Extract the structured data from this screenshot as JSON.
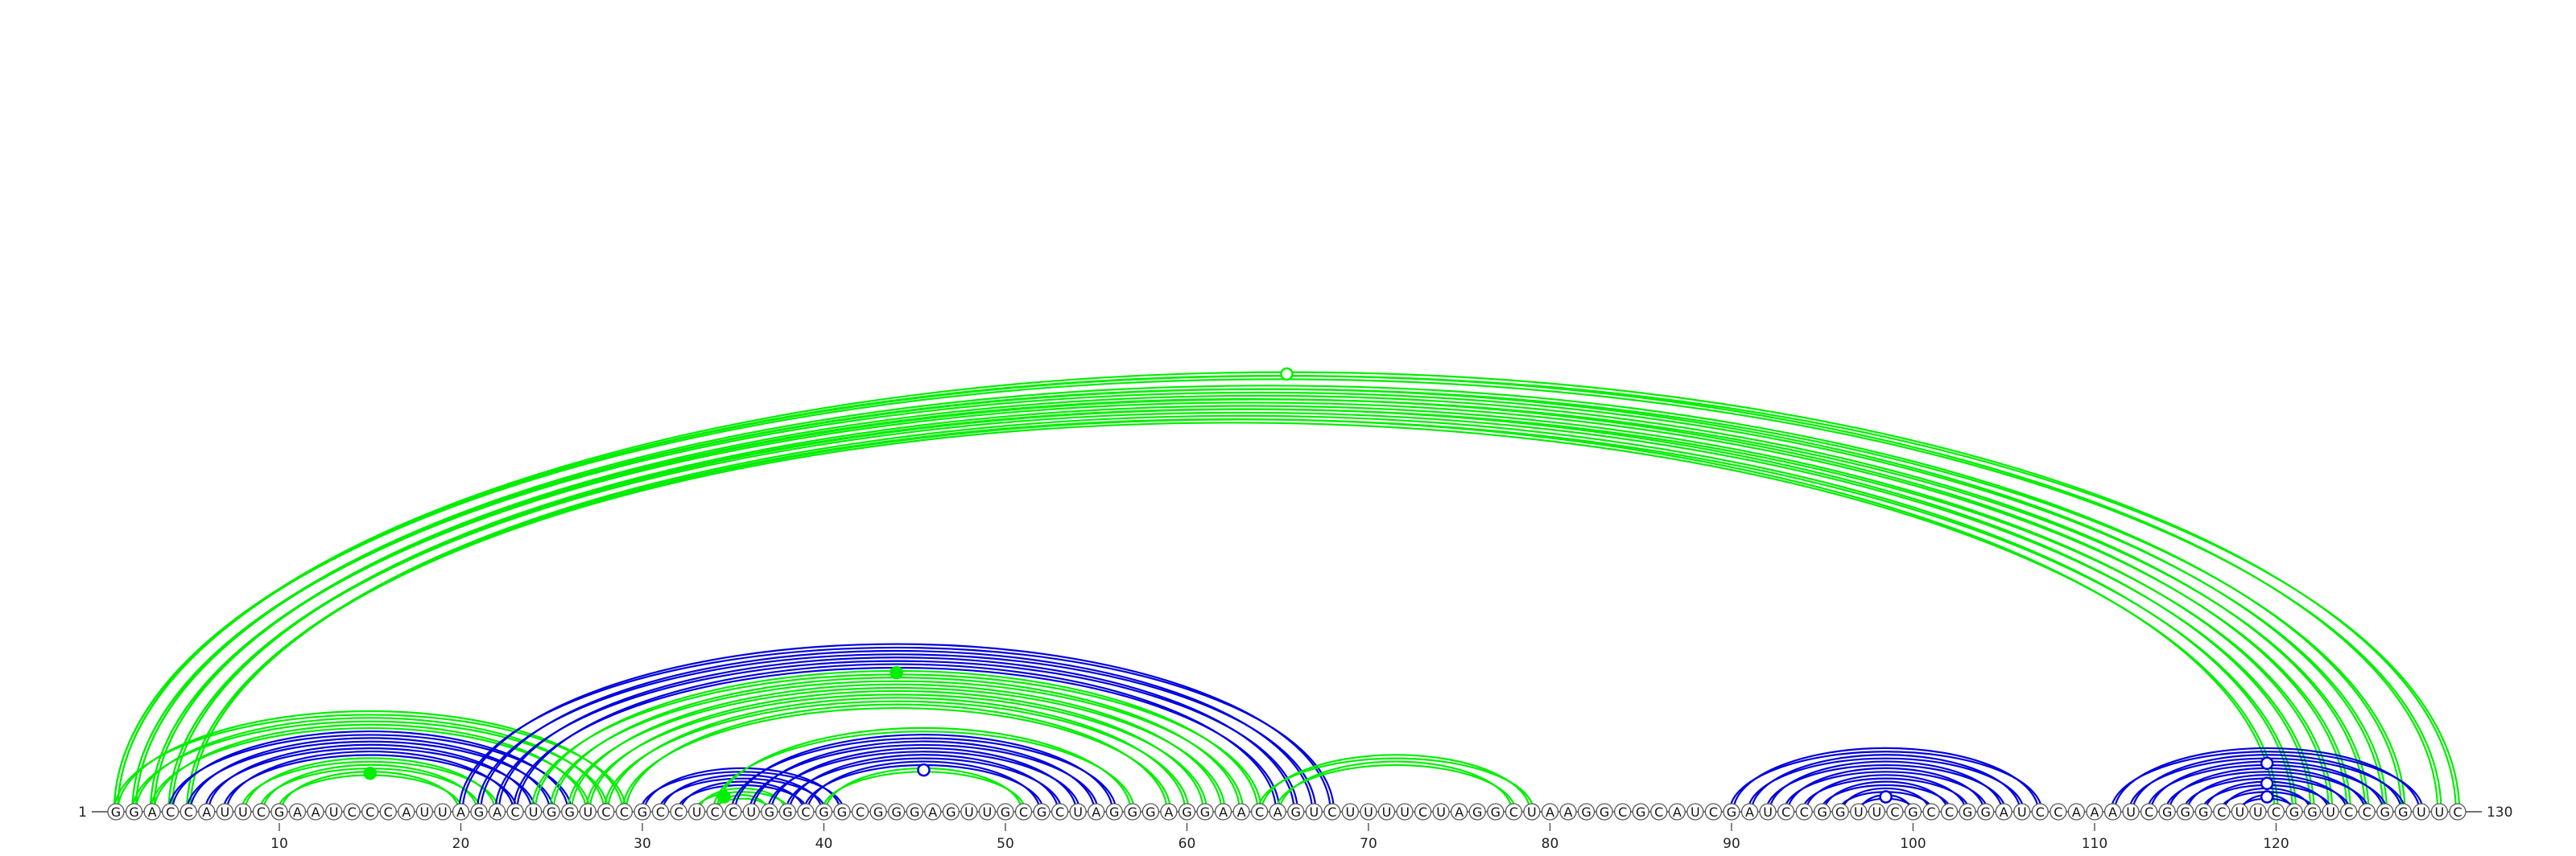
{
  "sequence": "GGACCAUUCGAAUCCCAUUAGACUGGUCCGCCUCCUGGCGGCGGGAGUUGCGCUAGGGAGGAACAGUCUUUUCUAGGCUAAGGCGCAUCGAUCCGGUUCGCCGGAUCCAAAUCGGGCUUCGGUCCGGUUC",
  "start_label": "1",
  "end_label": "130",
  "tick_values": [
    10,
    20,
    30,
    40,
    50,
    60,
    70,
    80,
    90,
    100,
    110,
    120
  ],
  "colors": {
    "green": "#00ee00",
    "blue": "#0000dd",
    "axis": "#444444"
  },
  "arcs": [
    {
      "color": "green",
      "i": 1,
      "j": 130
    },
    {
      "color": "green",
      "i": 1,
      "j": 129
    },
    {
      "color": "green",
      "i": 2,
      "j": 127
    },
    {
      "color": "green",
      "i": 2,
      "j": 126
    },
    {
      "color": "green",
      "i": 3,
      "j": 125
    },
    {
      "color": "green",
      "i": 3,
      "j": 124
    },
    {
      "color": "green",
      "i": 4,
      "j": 123
    },
    {
      "color": "green",
      "i": 4,
      "j": 122
    },
    {
      "color": "green",
      "i": 5,
      "j": 121
    },
    {
      "color": "green",
      "i": 5,
      "j": 120
    },
    {
      "color": "green",
      "i": 1,
      "j": 29
    },
    {
      "color": "green",
      "i": 2,
      "j": 28
    },
    {
      "color": "green",
      "i": 3,
      "j": 27
    },
    {
      "color": "blue",
      "i": 4,
      "j": 26
    },
    {
      "color": "blue",
      "i": 5,
      "j": 25
    },
    {
      "color": "blue",
      "i": 6,
      "j": 24
    },
    {
      "color": "blue",
      "i": 7,
      "j": 23
    },
    {
      "color": "green",
      "i": 8,
      "j": 22
    },
    {
      "color": "green",
      "i": 9,
      "j": 21
    },
    {
      "color": "green",
      "i": 10,
      "j": 20
    },
    {
      "color": "blue",
      "i": 20,
      "j": 68
    },
    {
      "color": "blue",
      "i": 21,
      "j": 67
    },
    {
      "color": "blue",
      "i": 22,
      "j": 66
    },
    {
      "color": "blue",
      "i": 23,
      "j": 65
    },
    {
      "color": "green",
      "i": 24,
      "j": 64
    },
    {
      "color": "green",
      "i": 25,
      "j": 63
    },
    {
      "color": "green",
      "i": 26,
      "j": 62
    },
    {
      "color": "green",
      "i": 27,
      "j": 61
    },
    {
      "color": "green",
      "i": 28,
      "j": 60
    },
    {
      "color": "green",
      "i": 29,
      "j": 59
    },
    {
      "color": "blue",
      "i": 30,
      "j": 41
    },
    {
      "color": "blue",
      "i": 31,
      "j": 40
    },
    {
      "color": "blue",
      "i": 32,
      "j": 39
    },
    {
      "color": "green",
      "i": 33,
      "j": 38
    },
    {
      "color": "green",
      "i": 34,
      "j": 37
    },
    {
      "color": "green",
      "i": 34,
      "j": 57
    },
    {
      "color": "blue",
      "i": 35,
      "j": 56
    },
    {
      "color": "blue",
      "i": 36,
      "j": 55
    },
    {
      "color": "blue",
      "i": 37,
      "j": 54
    },
    {
      "color": "blue",
      "i": 38,
      "j": 53
    },
    {
      "color": "blue",
      "i": 39,
      "j": 52
    },
    {
      "color": "green",
      "i": 40,
      "j": 51
    },
    {
      "color": "green",
      "i": 64,
      "j": 79
    },
    {
      "color": "green",
      "i": 65,
      "j": 78
    },
    {
      "color": "blue",
      "i": 90,
      "j": 107
    },
    {
      "color": "blue",
      "i": 91,
      "j": 106
    },
    {
      "color": "blue",
      "i": 92,
      "j": 105
    },
    {
      "color": "blue",
      "i": 93,
      "j": 104
    },
    {
      "color": "blue",
      "i": 94,
      "j": 103
    },
    {
      "color": "blue",
      "i": 95,
      "j": 102
    },
    {
      "color": "blue",
      "i": 96,
      "j": 101
    },
    {
      "color": "blue",
      "i": 97,
      "j": 100
    },
    {
      "color": "blue",
      "i": 111,
      "j": 128
    },
    {
      "color": "blue",
      "i": 112,
      "j": 127
    },
    {
      "color": "blue",
      "i": 113,
      "j": 126
    },
    {
      "color": "blue",
      "i": 114,
      "j": 125
    },
    {
      "color": "blue",
      "i": 115,
      "j": 124
    },
    {
      "color": "blue",
      "i": 116,
      "j": 123
    },
    {
      "color": "blue",
      "i": 117,
      "j": 122
    },
    {
      "color": "blue",
      "i": 118,
      "j": 121
    }
  ],
  "markers": [
    {
      "color": "green",
      "i": 1,
      "j": 130,
      "filled": false
    },
    {
      "color": "green",
      "i": 10,
      "j": 20,
      "filled": true
    },
    {
      "color": "green",
      "i": 24,
      "j": 64,
      "filled": true
    },
    {
      "color": "blue",
      "i": 40,
      "j": 51,
      "filled": false
    },
    {
      "color": "green",
      "i": 33,
      "j": 36,
      "filled": true
    },
    {
      "color": "blue",
      "i": 97,
      "j": 100,
      "filled": false
    },
    {
      "color": "blue",
      "i": 113,
      "j": 126,
      "filled": false
    },
    {
      "color": "blue",
      "i": 116,
      "j": 123,
      "filled": false
    },
    {
      "color": "blue",
      "i": 118,
      "j": 121,
      "filled": false
    }
  ]
}
